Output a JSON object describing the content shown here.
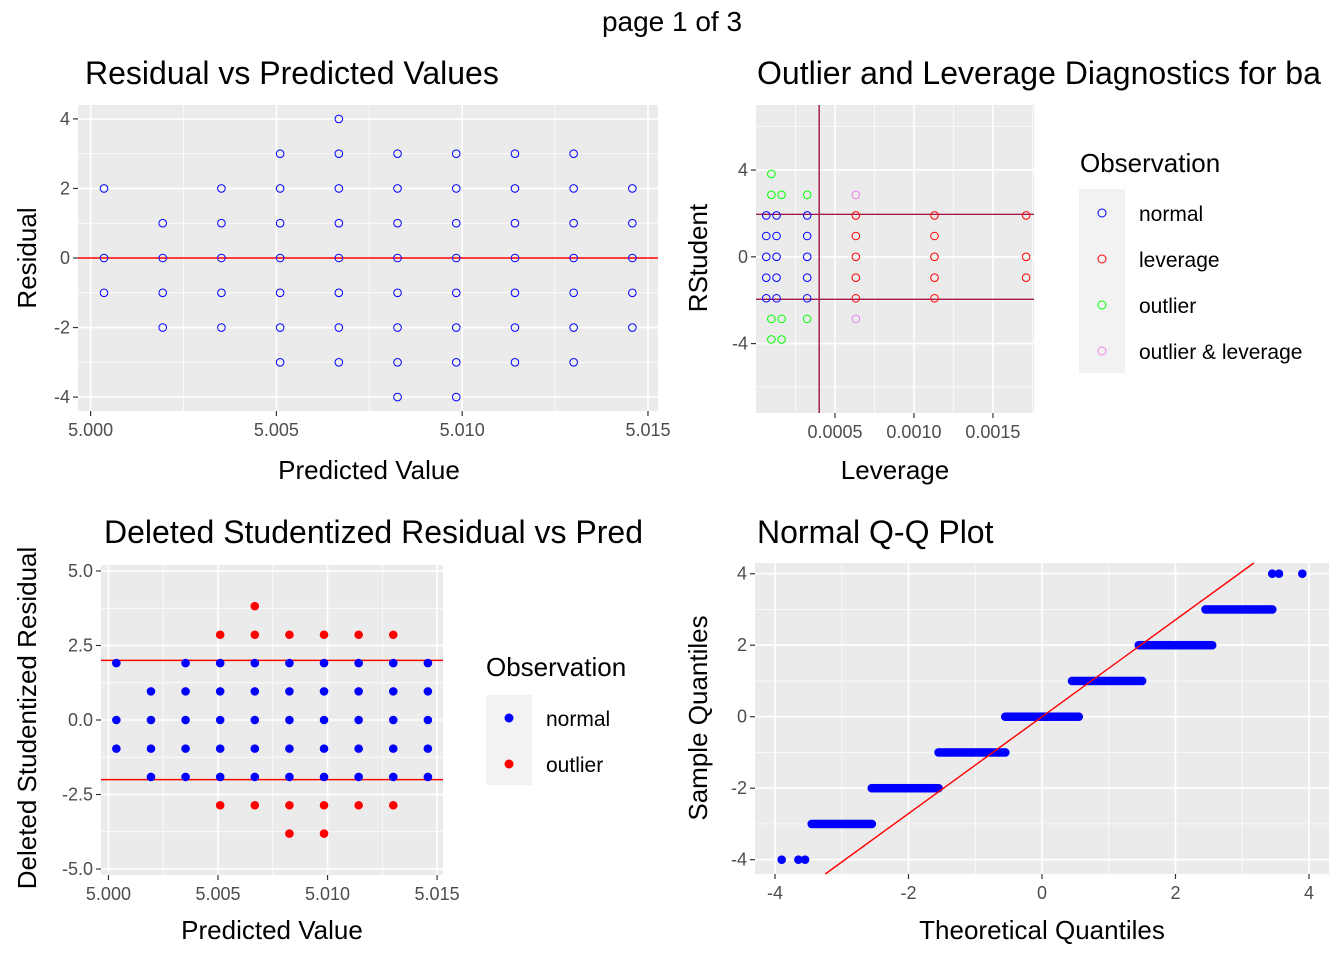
{
  "page": {
    "title": "page 1 of 3"
  },
  "colors": {
    "panel_bg": "#EBEBEB",
    "grid": "#FFFFFF",
    "normal": "#0000FF",
    "leverage": "#FF0000",
    "outlier": "#00FF00",
    "outlier_leverage": "#EE82EE",
    "ref_line": "#FF0000",
    "threshold_line": "#A0174B"
  },
  "chart_data": [
    {
      "type": "scatter",
      "id": "residual_vs_predicted",
      "title": "Residual vs Predicted Values",
      "xlabel": "Predicted Value",
      "ylabel": "Residual",
      "xlim": [
        4.99966,
        5.01527
      ],
      "ylim": [
        -4.4,
        4.4
      ],
      "xticks": [
        "5.000",
        "5.005",
        "5.010",
        "5.015"
      ],
      "yticks": [
        "-4",
        "-2",
        "0",
        "2",
        "4"
      ],
      "marker": "hollow",
      "hline": 0,
      "x": [
        5.00036,
        5.00194,
        5.00352,
        5.0051,
        5.00668,
        5.00826,
        5.00984,
        5.01142,
        5.013,
        5.01458
      ],
      "residuals_by_x": [
        [
          -1,
          0,
          2
        ],
        [
          -2,
          -1,
          0,
          1
        ],
        [
          -2,
          -1,
          0,
          1,
          2
        ],
        [
          -3,
          -2,
          -1,
          0,
          1,
          2,
          3
        ],
        [
          -3,
          -2,
          -1,
          0,
          1,
          2,
          3,
          4
        ],
        [
          -4,
          -3,
          -2,
          -1,
          0,
          1,
          2,
          3
        ],
        [
          -4,
          -3,
          -2,
          -1,
          0,
          1,
          2,
          3
        ],
        [
          -3,
          -2,
          -1,
          0,
          1,
          2,
          3
        ],
        [
          -3,
          -2,
          -1,
          0,
          1,
          2,
          3
        ],
        [
          -2,
          -1,
          0,
          1,
          2
        ]
      ]
    },
    {
      "type": "scatter",
      "id": "outlier_leverage",
      "title": "Outlier and Leverage Diagnostics for ba",
      "xlabel": "Leverage",
      "ylabel": "RStudent",
      "xlim": [
        0.0,
        0.00176
      ],
      "ylim": [
        -7.2,
        7.0
      ],
      "xticks": [
        "0.0005",
        "0.0010",
        "0.0015"
      ],
      "yticks": [
        "-4",
        "0",
        "4"
      ],
      "marker": "hollow",
      "hlines": [
        -1.96,
        1.96
      ],
      "vline": 0.0004,
      "legend_title": "Observation",
      "legend": [
        "normal",
        "leverage",
        "outlier",
        "outlier & leverage"
      ],
      "legend_position": "right",
      "groups": [
        {
          "x": 6.49e-05,
          "rstudent": [
            -1.91,
            -0.96,
            0.0,
            0.96,
            1.91
          ],
          "class": [
            "normal",
            "normal",
            "normal",
            "normal",
            "normal"
          ]
        },
        {
          "x": 9.72e-05,
          "rstudent": [
            -3.81,
            -2.86,
            2.86,
            3.82
          ],
          "class": [
            "outlier",
            "outlier",
            "outlier",
            "outlier"
          ]
        },
        {
          "x": 0.00013,
          "rstudent": [
            -1.91,
            -0.96,
            0.0,
            0.96,
            1.91
          ],
          "class": [
            "normal",
            "normal",
            "normal",
            "normal",
            "normal"
          ]
        },
        {
          "x": 0.000162,
          "rstudent": [
            -3.81,
            -2.86,
            2.86
          ],
          "class": [
            "outlier",
            "outlier",
            "outlier"
          ]
        },
        {
          "x": 0.000324,
          "rstudent": [
            -1.91,
            -0.96,
            0.0,
            0.96,
            1.91
          ],
          "class": [
            "normal",
            "normal",
            "normal",
            "normal",
            "normal"
          ]
        },
        {
          "x": 0.000324,
          "rstudent": [
            -2.86,
            2.86
          ],
          "class": [
            "outlier",
            "outlier"
          ]
        },
        {
          "x": 0.000632,
          "rstudent": [
            -1.91,
            -0.96,
            0.0,
            0.96,
            1.91
          ],
          "class": [
            "leverage",
            "leverage",
            "leverage",
            "leverage",
            "leverage"
          ]
        },
        {
          "x": 0.000632,
          "rstudent": [
            -2.86,
            2.86
          ],
          "class": [
            "outlier & leverage",
            "outlier & leverage"
          ]
        },
        {
          "x": 0.00113,
          "rstudent": [
            -1.91,
            -0.96,
            0.0,
            0.96,
            1.91
          ],
          "class": [
            "leverage",
            "leverage",
            "leverage",
            "leverage",
            "leverage"
          ]
        },
        {
          "x": 0.00171,
          "rstudent": [
            -0.96,
            0.0,
            1.91
          ],
          "class": [
            "leverage",
            "leverage",
            "leverage"
          ]
        }
      ]
    },
    {
      "type": "scatter",
      "id": "deleted_studentized_vs_predicted",
      "title": "Deleted Studentized Residual vs Pred",
      "xlabel": "Predicted Value",
      "ylabel": "Deleted Studentized Residual",
      "xlim": [
        4.99966,
        5.01527
      ],
      "ylim": [
        -5.2,
        5.2
      ],
      "xticks": [
        "5.000",
        "5.005",
        "5.010",
        "5.015"
      ],
      "yticks": [
        "-5.0",
        "-2.5",
        "0.0",
        "2.5",
        "5.0"
      ],
      "marker": "filled",
      "hlines": [
        -2,
        2
      ],
      "legend_title": "Observation",
      "legend": [
        "normal",
        "outlier"
      ],
      "legend_position": "right",
      "x": [
        5.00036,
        5.00194,
        5.00352,
        5.0051,
        5.00668,
        5.00826,
        5.00984,
        5.01142,
        5.013,
        5.01458
      ],
      "values_by_x": [
        [
          -0.96,
          0.0,
          1.91
        ],
        [
          -1.91,
          -0.96,
          0.0,
          0.96
        ],
        [
          -1.91,
          -0.96,
          0.0,
          0.96,
          1.91
        ],
        [
          -2.86,
          -1.91,
          -0.96,
          0.0,
          0.96,
          1.91,
          2.86
        ],
        [
          -2.86,
          -1.91,
          -0.96,
          0.0,
          0.96,
          1.91,
          2.86,
          3.82
        ],
        [
          -3.81,
          -2.86,
          -1.91,
          -0.96,
          0.0,
          0.96,
          1.91,
          2.86
        ],
        [
          -3.81,
          -2.86,
          -1.91,
          -0.96,
          0.0,
          0.96,
          1.91,
          2.86
        ],
        [
          -2.86,
          -1.91,
          -0.96,
          0.0,
          0.96,
          1.91,
          2.86
        ],
        [
          -2.86,
          -1.91,
          -0.96,
          0.0,
          0.96,
          1.91,
          2.86
        ],
        [
          -1.91,
          -0.96,
          0.0,
          0.96,
          1.91
        ]
      ],
      "outlier_threshold": 2
    },
    {
      "type": "scatter",
      "id": "normal_qq",
      "title": "Normal Q-Q Plot",
      "xlabel": "Theoretical Quantiles",
      "ylabel": "Sample Quantiles",
      "xlim": [
        -4.3,
        4.3
      ],
      "ylim": [
        -4.4,
        4.3
      ],
      "xticks": [
        "-4",
        "-2",
        "0",
        "2",
        "4"
      ],
      "yticks": [
        "-4",
        "-2",
        "0",
        "2",
        "4"
      ],
      "marker": "filled",
      "reference_line": {
        "intercept": 0,
        "slope": 1.355
      },
      "runs": [
        {
          "y": -4,
          "x": [
            -3.9,
            -3.65,
            -3.55
          ]
        },
        {
          "y": -3,
          "x_from": -3.45,
          "x_to": -2.55
        },
        {
          "y": -2,
          "x_from": -2.55,
          "x_to": -1.55
        },
        {
          "y": -1,
          "x_from": -1.55,
          "x_to": -0.55
        },
        {
          "y": 0,
          "x_from": -0.55,
          "x_to": 0.55
        },
        {
          "y": 1,
          "x_from": 0.45,
          "x_to": 1.5
        },
        {
          "y": 2,
          "x_from": 1.45,
          "x_to": 2.55
        },
        {
          "y": 3,
          "x_from": 2.45,
          "x_to": 3.45
        },
        {
          "y": 4,
          "x": [
            3.45,
            3.55,
            3.9
          ]
        }
      ]
    }
  ]
}
